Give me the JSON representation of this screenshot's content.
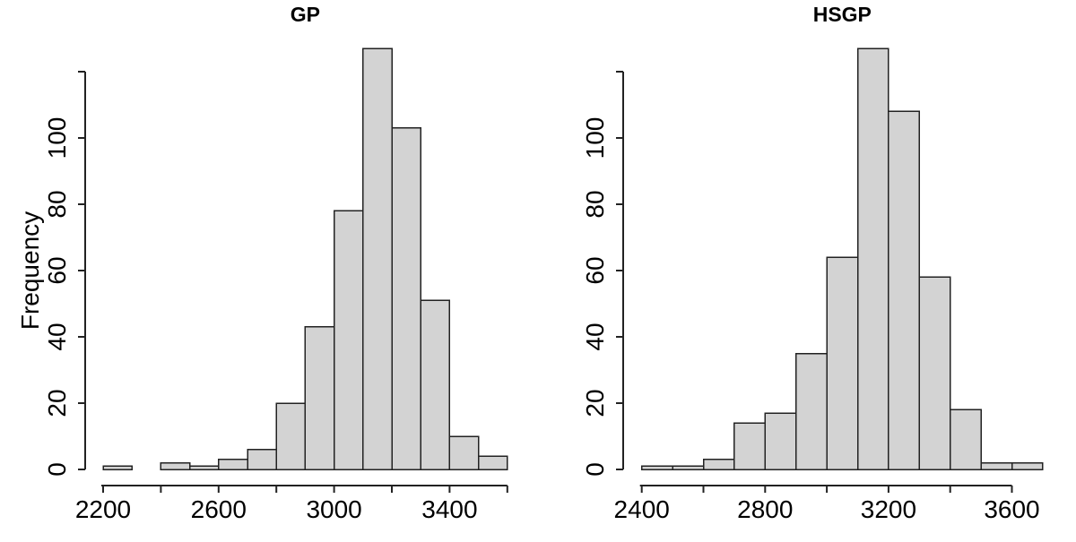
{
  "figure": {
    "background": "#ffffff",
    "bar_fill": "#d3d3d3",
    "bar_border": "#222222",
    "axis_color": "#222222"
  },
  "chart_data": [
    {
      "type": "bar",
      "subtype": "histogram",
      "title": "GP",
      "xlabel": "",
      "ylabel": "Frequency",
      "bin_start": 2200,
      "bin_width": 100,
      "categories": [
        "2200-2300",
        "2300-2400",
        "2400-2500",
        "2500-2600",
        "2600-2700",
        "2700-2800",
        "2800-2900",
        "2900-3000",
        "3000-3100",
        "3100-3200",
        "3200-3300",
        "3300-3400",
        "3400-3500",
        "3500-3600"
      ],
      "values": [
        1,
        0,
        2,
        1,
        3,
        6,
        20,
        43,
        78,
        127,
        103,
        51,
        10,
        4
      ],
      "x_ticks": [
        2200,
        2400,
        2600,
        2800,
        3000,
        3200,
        3400,
        3600
      ],
      "x_tick_labels": [
        "2200",
        "2600",
        "3000",
        "3400"
      ],
      "y_ticks": [
        0,
        20,
        40,
        60,
        80,
        100,
        120
      ],
      "y_tick_labels": [
        "0",
        "20",
        "40",
        "60",
        "80",
        "100"
      ],
      "xlim": [
        2200,
        3600
      ],
      "ylim": [
        0,
        127
      ],
      "grid": "off",
      "legend": "none"
    },
    {
      "type": "bar",
      "subtype": "histogram",
      "title": "HSGP",
      "xlabel": "",
      "ylabel": "",
      "bin_start": 2400,
      "bin_width": 100,
      "categories": [
        "2400-2500",
        "2500-2600",
        "2600-2700",
        "2700-2800",
        "2800-2900",
        "2900-3000",
        "3000-3100",
        "3100-3200",
        "3200-3300",
        "3300-3400",
        "3400-3500",
        "3500-3600",
        "3600-3700"
      ],
      "values": [
        1,
        1,
        3,
        14,
        17,
        35,
        64,
        127,
        108,
        58,
        18,
        2,
        2
      ],
      "x_ticks": [
        2400,
        2600,
        2800,
        3000,
        3200,
        3400,
        3600
      ],
      "x_tick_labels": [
        "2400",
        "2800",
        "3200",
        "3600"
      ],
      "y_ticks": [
        0,
        20,
        40,
        60,
        80,
        100,
        120
      ],
      "y_tick_labels": [
        "0",
        "20",
        "40",
        "60",
        "80",
        "100"
      ],
      "xlim": [
        2400,
        3700
      ],
      "ylim": [
        0,
        127
      ],
      "grid": "off",
      "legend": "none"
    }
  ]
}
